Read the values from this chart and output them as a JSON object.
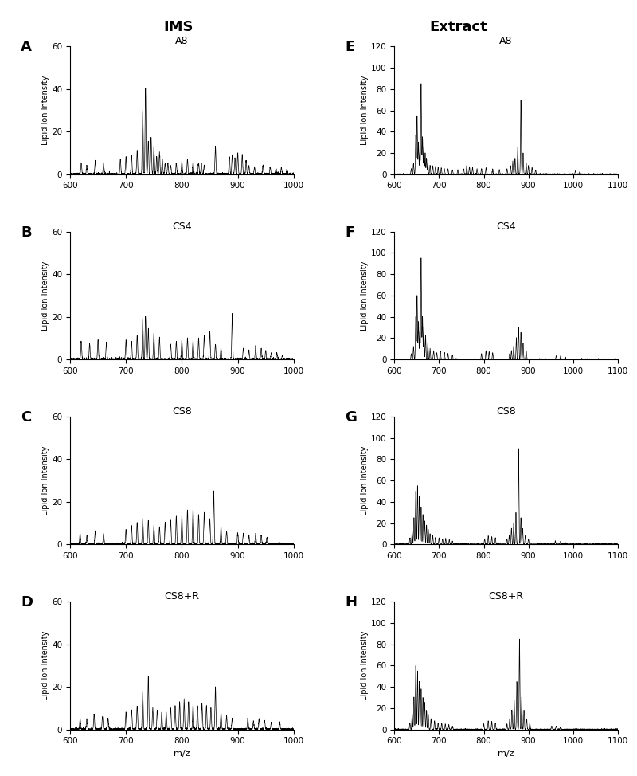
{
  "col_titles": [
    "IMS",
    "Extract"
  ],
  "panel_labels_left": [
    "A",
    "B",
    "C",
    "D"
  ],
  "panel_labels_right": [
    "E",
    "F",
    "G",
    "H"
  ],
  "sample_labels_ims": [
    "A8",
    "CS4",
    "CS8",
    "CS8+R"
  ],
  "sample_labels_ext": [
    "A8",
    "CS4",
    "CS8",
    "CS8+R"
  ],
  "ims_xlim": [
    600,
    1000
  ],
  "ext_xlim": [
    600,
    1100
  ],
  "ims_ylim": [
    0,
    60
  ],
  "ext_ylim": [
    0,
    120
  ],
  "ims_yticks": [
    0,
    20,
    40,
    60
  ],
  "ext_yticks": [
    0,
    20,
    40,
    60,
    80,
    100,
    120
  ],
  "xlabel": "m/z",
  "ylabel": "Lipid Ion Intensity",
  "background_color": "#ffffff",
  "line_color": "#000000",
  "ims_xticks": [
    600,
    700,
    800,
    900,
    1000
  ],
  "ext_xticks": [
    600,
    700,
    800,
    900,
    1000,
    1100
  ],
  "ims_spectra": {
    "A8": {
      "peaks": [
        620,
        630,
        645,
        660,
        690,
        700,
        710,
        720,
        730,
        735,
        740,
        745,
        750,
        755,
        760,
        765,
        770,
        775,
        780,
        790,
        800,
        810,
        820,
        830,
        835,
        840,
        860,
        885,
        890,
        895,
        900,
        908,
        915,
        920,
        930,
        945,
        958,
        968,
        978,
        988
      ],
      "heights": [
        5,
        4,
        6,
        5,
        7,
        8,
        9,
        11,
        30,
        40,
        15,
        17,
        13,
        8,
        10,
        7,
        5,
        5,
        4,
        5,
        6,
        7,
        6,
        5,
        5,
        4,
        13,
        8,
        9,
        7,
        10,
        9,
        6,
        4,
        3,
        4,
        3,
        2,
        3,
        2
      ]
    },
    "CS4": {
      "peaks": [
        620,
        635,
        650,
        665,
        700,
        710,
        720,
        730,
        735,
        740,
        750,
        760,
        780,
        790,
        800,
        810,
        820,
        830,
        840,
        850,
        860,
        870,
        890,
        910,
        920,
        932,
        942,
        950,
        960,
        970,
        980
      ],
      "heights": [
        8,
        7,
        9,
        8,
        9,
        8,
        11,
        19,
        20,
        14,
        12,
        10,
        7,
        8,
        9,
        10,
        9,
        10,
        11,
        13,
        7,
        5,
        21,
        5,
        4,
        6,
        5,
        4,
        3,
        3,
        2
      ]
    },
    "CS8": {
      "peaks": [
        618,
        630,
        645,
        660,
        700,
        710,
        720,
        730,
        740,
        750,
        760,
        770,
        780,
        790,
        800,
        810,
        820,
        830,
        840,
        850,
        857,
        870,
        880,
        900,
        910,
        920,
        932,
        942,
        952
      ],
      "heights": [
        5,
        4,
        6,
        5,
        7,
        8,
        10,
        12,
        11,
        9,
        8,
        10,
        11,
        13,
        14,
        16,
        17,
        14,
        15,
        12,
        25,
        8,
        6,
        5,
        5,
        4,
        5,
        4,
        3
      ]
    },
    "CS8+R": {
      "peaks": [
        618,
        630,
        643,
        658,
        668,
        700,
        710,
        720,
        730,
        740,
        748,
        756,
        764,
        772,
        780,
        788,
        796,
        804,
        812,
        820,
        828,
        836,
        844,
        852,
        860,
        870,
        880,
        890,
        918,
        928,
        938,
        948,
        960,
        975
      ],
      "heights": [
        5,
        5,
        7,
        6,
        5,
        8,
        9,
        11,
        18,
        25,
        10,
        9,
        8,
        8,
        10,
        11,
        13,
        14,
        13,
        12,
        11,
        12,
        11,
        10,
        20,
        8,
        6,
        5,
        5,
        4,
        5,
        4,
        3,
        3
      ]
    }
  },
  "ext_spectra": {
    "A8": {
      "peaks": [
        638,
        643,
        648,
        651,
        654,
        657,
        660,
        663,
        666,
        669,
        672,
        675,
        680,
        686,
        692,
        698,
        705,
        712,
        720,
        730,
        742,
        755,
        762,
        768,
        775,
        785,
        795,
        805,
        820,
        835,
        852,
        860,
        865,
        870,
        876,
        883,
        888,
        895,
        900,
        908,
        916,
        1005,
        1015
      ],
      "heights": [
        5,
        10,
        37,
        55,
        30,
        20,
        85,
        35,
        25,
        20,
        15,
        10,
        8,
        8,
        7,
        6,
        6,
        5,
        5,
        4,
        4,
        5,
        8,
        7,
        6,
        5,
        5,
        6,
        5,
        4,
        5,
        8,
        12,
        15,
        25,
        70,
        20,
        10,
        8,
        6,
        4,
        3,
        2
      ]
    },
    "CS4": {
      "peaks": [
        638,
        643,
        648,
        651,
        654,
        657,
        660,
        663,
        666,
        670,
        675,
        680,
        688,
        695,
        703,
        712,
        720,
        730,
        795,
        805,
        812,
        820,
        858,
        862,
        867,
        873,
        878,
        883,
        888,
        895,
        962,
        972,
        982
      ],
      "heights": [
        5,
        12,
        40,
        60,
        35,
        25,
        95,
        40,
        30,
        22,
        15,
        10,
        8,
        6,
        7,
        6,
        5,
        4,
        5,
        8,
        7,
        6,
        5,
        8,
        12,
        20,
        30,
        25,
        15,
        8,
        3,
        3,
        2
      ]
    },
    "CS8": {
      "peaks": [
        635,
        640,
        644,
        648,
        652,
        656,
        660,
        664,
        668,
        672,
        676,
        680,
        686,
        692,
        700,
        708,
        715,
        723,
        730,
        802,
        810,
        818,
        826,
        852,
        857,
        862,
        867,
        872,
        878,
        883,
        887,
        893,
        900,
        960,
        972,
        982
      ],
      "heights": [
        6,
        12,
        25,
        50,
        55,
        45,
        35,
        28,
        22,
        18,
        14,
        10,
        8,
        6,
        6,
        5,
        5,
        4,
        3,
        5,
        8,
        7,
        6,
        5,
        8,
        15,
        20,
        30,
        90,
        25,
        15,
        8,
        5,
        3,
        3,
        2
      ]
    },
    "CS8+R": {
      "peaks": [
        635,
        640,
        644,
        648,
        652,
        656,
        660,
        664,
        668,
        672,
        676,
        682,
        690,
        698,
        706,
        714,
        722,
        730,
        800,
        810,
        818,
        826,
        852,
        858,
        863,
        868,
        874,
        880,
        885,
        890,
        896,
        903,
        952,
        962,
        972
      ],
      "heights": [
        6,
        15,
        30,
        60,
        55,
        45,
        38,
        30,
        25,
        18,
        14,
        10,
        8,
        6,
        6,
        5,
        4,
        3,
        5,
        8,
        7,
        6,
        5,
        10,
        18,
        28,
        45,
        85,
        30,
        18,
        10,
        6,
        3,
        3,
        2
      ]
    }
  }
}
